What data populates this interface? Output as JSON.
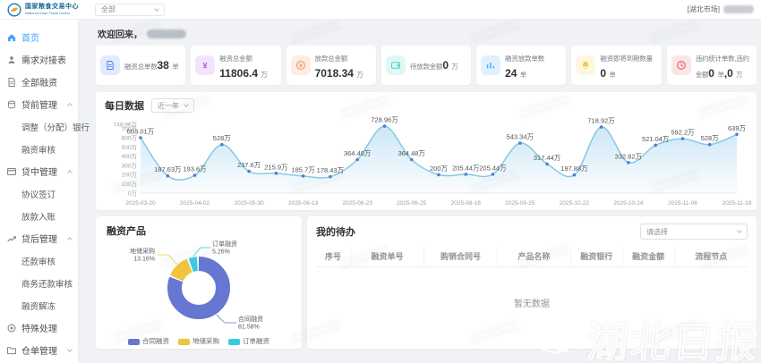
{
  "header": {
    "logo_title": "国家粮食交易中心",
    "logo_subtitle": "National Grain Trade Center",
    "market_select": "全部",
    "user_market": "[湖北市场]"
  },
  "sidebar": {
    "items": [
      {
        "label": "首页",
        "icon": "home",
        "type": "item",
        "active": true
      },
      {
        "label": "需求对接表",
        "icon": "user",
        "type": "item"
      },
      {
        "label": "全部融资",
        "icon": "doc",
        "type": "item"
      },
      {
        "label": "贷前管理",
        "icon": "coins",
        "type": "group",
        "caret": "up"
      },
      {
        "label": "调整（分配）银行",
        "type": "child"
      },
      {
        "label": "融资审核",
        "type": "child"
      },
      {
        "label": "贷中管理",
        "icon": "card",
        "type": "group",
        "caret": "up"
      },
      {
        "label": "协议签订",
        "type": "child"
      },
      {
        "label": "放款入账",
        "type": "child"
      },
      {
        "label": "贷后管理",
        "icon": "trend",
        "type": "group",
        "caret": "up"
      },
      {
        "label": "还款审核",
        "type": "child"
      },
      {
        "label": "商务还款审核",
        "type": "child"
      },
      {
        "label": "融资解冻",
        "type": "child"
      },
      {
        "label": "特殊处理",
        "icon": "target",
        "type": "item"
      },
      {
        "label": "仓单管理",
        "icon": "folder",
        "type": "group",
        "caret": "down"
      }
    ]
  },
  "welcome": {
    "text": "欢迎回来，"
  },
  "stats": [
    {
      "label": "融资总单数",
      "icon": "doc",
      "color": "#4a7cf7",
      "parts": [
        {
          "v": "38",
          "u": "单"
        }
      ]
    },
    {
      "label": "融资总金额",
      "icon": "yen",
      "color": "#b05ce6",
      "parts": [
        {
          "v": "11806.4",
          "u": "万"
        }
      ]
    },
    {
      "label": "放款总金额",
      "icon": "coin",
      "color": "#f5924d",
      "parts": [
        {
          "v": "7018.34",
          "u": "万"
        }
      ]
    },
    {
      "label": "待放款金额",
      "icon": "wallet",
      "color": "#3fd2c3",
      "parts": [
        {
          "v": "0",
          "u": "万"
        }
      ]
    },
    {
      "label": "融资放款单数",
      "icon": "chart",
      "color": "#3da8f5",
      "parts": [
        {
          "v": "24",
          "u": "单"
        }
      ]
    },
    {
      "label": "融资即将到期数量",
      "icon": "bell",
      "color": "#f0cf45",
      "parts": [
        {
          "v": "0",
          "u": "单"
        }
      ]
    },
    {
      "label": "违约统计单数,违约金额",
      "icon": "clock",
      "color": "#e85c5c",
      "parts": [
        {
          "v": "0",
          "u": "单"
        },
        {
          "v": "0",
          "u": "万"
        }
      ]
    }
  ],
  "chart_data": [
    {
      "type": "area",
      "title": "每日数据",
      "range_label": "近一年",
      "x_labels": [
        "2025-03-20",
        "2025-04-02",
        "2025-05-30",
        "2025-06-13",
        "2025-06-23",
        "2025-06-25",
        "2025-08-18",
        "2025-09-25",
        "2025-10-22",
        "2025-10-24",
        "2025-11-06",
        "2025-11-18"
      ],
      "x_label_every": 2,
      "values": [
        603.01,
        187.63,
        193.6,
        528,
        237.6,
        215.9,
        185.7,
        178.43,
        364.48,
        728.96,
        364.48,
        200,
        205.44,
        205.44,
        543.34,
        317.44,
        197.88,
        718.92,
        332.82,
        521.04,
        592.2,
        528,
        639
      ],
      "unit": "万",
      "ylim": [
        0,
        748.96
      ],
      "y_ticks": [
        0,
        100,
        200,
        300,
        400,
        500,
        600,
        700,
        748.96
      ],
      "y_tick_labels": [
        "0万",
        "100万",
        "200万",
        "300万",
        "400万",
        "500万",
        "600万",
        "700万",
        "748.96万"
      ],
      "line_color": "#85c8e8",
      "dot_color": "#4d7fd0",
      "fill_from": "rgba(140,200,235,0.45)",
      "fill_to": "rgba(140,200,235,0.03)",
      "grid": false,
      "legend_position": "none"
    },
    {
      "type": "pie",
      "title": "融资产品",
      "slices": [
        {
          "name": "合同融资",
          "pct": 81.58,
          "color": "#6577d0"
        },
        {
          "name": "地储采购",
          "pct": 13.16,
          "color": "#efc53f"
        },
        {
          "name": "订单融资",
          "pct": 5.26,
          "color": "#38cbe0"
        }
      ],
      "legend_position": "bottom"
    }
  ],
  "todo": {
    "title": "我的待办",
    "filter_placeholder": "请选择",
    "columns": [
      "序号",
      "融资单号",
      "购销合同号",
      "产品名称",
      "融资银行",
      "融资金额",
      "流程节点"
    ],
    "empty_text": "暂无数据"
  },
  "watermark": {
    "text": "湖北日报"
  }
}
